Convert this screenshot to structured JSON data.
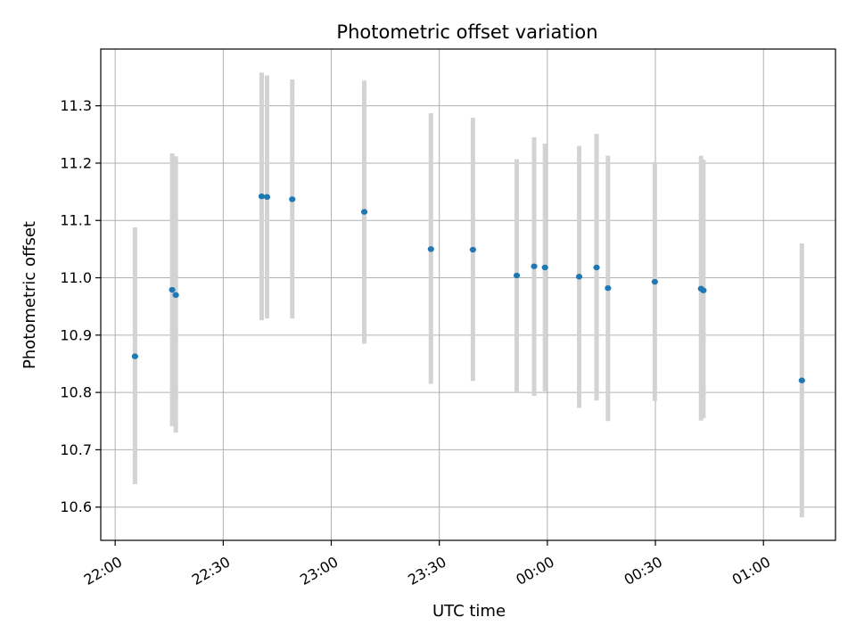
{
  "chart_data": {
    "type": "scatter",
    "title": "Photometric offset variation",
    "xlabel": "UTC time",
    "ylabel": "Photometric offset",
    "x_unit": "UTC time of day",
    "xlim": [
      "21:56",
      "01:20"
    ],
    "ylim": [
      10.542,
      11.399
    ],
    "xticks": [
      "22:00",
      "22:30",
      "23:00",
      "23:30",
      "00:00",
      "00:30",
      "01:00"
    ],
    "yticks": [
      10.6,
      10.7,
      10.8,
      10.9,
      11.0,
      11.1,
      11.2,
      11.3
    ],
    "grid": true,
    "marker_color": "#1f77b4",
    "errorbar_color": "#d3d3d3",
    "points": [
      {
        "time": "22:05:30",
        "y": 10.863,
        "low": 10.64,
        "high": 11.088
      },
      {
        "time": "22:15:50",
        "y": 10.979,
        "low": 10.741,
        "high": 11.217
      },
      {
        "time": "22:16:50",
        "y": 10.97,
        "low": 10.73,
        "high": 11.212
      },
      {
        "time": "22:40:40",
        "y": 11.142,
        "low": 10.926,
        "high": 11.358
      },
      {
        "time": "22:42:10",
        "y": 11.141,
        "low": 10.929,
        "high": 11.353
      },
      {
        "time": "22:49:10",
        "y": 11.137,
        "low": 10.929,
        "high": 11.346
      },
      {
        "time": "23:09:10",
        "y": 11.115,
        "low": 10.885,
        "high": 11.344
      },
      {
        "time": "23:27:40",
        "y": 11.05,
        "low": 10.815,
        "high": 11.287
      },
      {
        "time": "23:39:20",
        "y": 11.049,
        "low": 10.82,
        "high": 11.279
      },
      {
        "time": "23:51:30",
        "y": 11.004,
        "low": 10.8,
        "high": 11.207
      },
      {
        "time": "23:56:20",
        "y": 11.02,
        "low": 10.794,
        "high": 11.245
      },
      {
        "time": "23:59:20",
        "y": 11.018,
        "low": 10.802,
        "high": 11.234
      },
      {
        "time": "00:08:50",
        "y": 11.002,
        "low": 10.773,
        "high": 11.23
      },
      {
        "time": "00:13:40",
        "y": 11.018,
        "low": 10.786,
        "high": 11.251
      },
      {
        "time": "00:16:50",
        "y": 10.982,
        "low": 10.75,
        "high": 11.213
      },
      {
        "time": "00:29:50",
        "y": 10.993,
        "low": 10.785,
        "high": 11.202
      },
      {
        "time": "00:42:40",
        "y": 10.981,
        "low": 10.751,
        "high": 11.213
      },
      {
        "time": "00:43:20",
        "y": 10.978,
        "low": 10.755,
        "high": 11.206
      },
      {
        "time": "01:10:40",
        "y": 10.821,
        "low": 10.582,
        "high": 11.06
      }
    ]
  }
}
